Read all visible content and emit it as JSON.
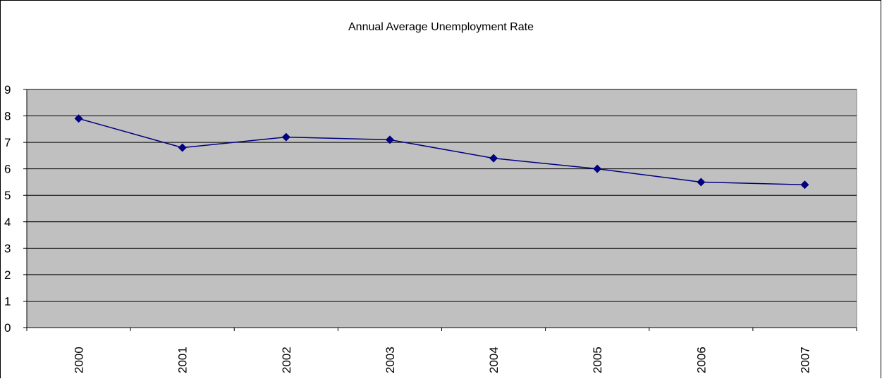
{
  "chart_data": {
    "type": "line",
    "title": "Annual Average Unemployment Rate",
    "xlabel": "",
    "ylabel": "",
    "categories": [
      "2000",
      "2001",
      "2002",
      "2003",
      "2004",
      "2005",
      "2006",
      "2007"
    ],
    "series": [
      {
        "values": [
          7.9,
          6.8,
          7.2,
          7.1,
          6.4,
          6.0,
          5.5,
          5.4
        ]
      }
    ],
    "yticks": [
      "0",
      "1",
      "2",
      "3",
      "4",
      "5",
      "6",
      "7",
      "8",
      "9"
    ],
    "ylim": [
      0,
      9
    ],
    "grid": true,
    "legend": "none",
    "colors": {
      "plot_background": "#c0c0c0",
      "line": "#000080",
      "grid": "#000000"
    }
  }
}
